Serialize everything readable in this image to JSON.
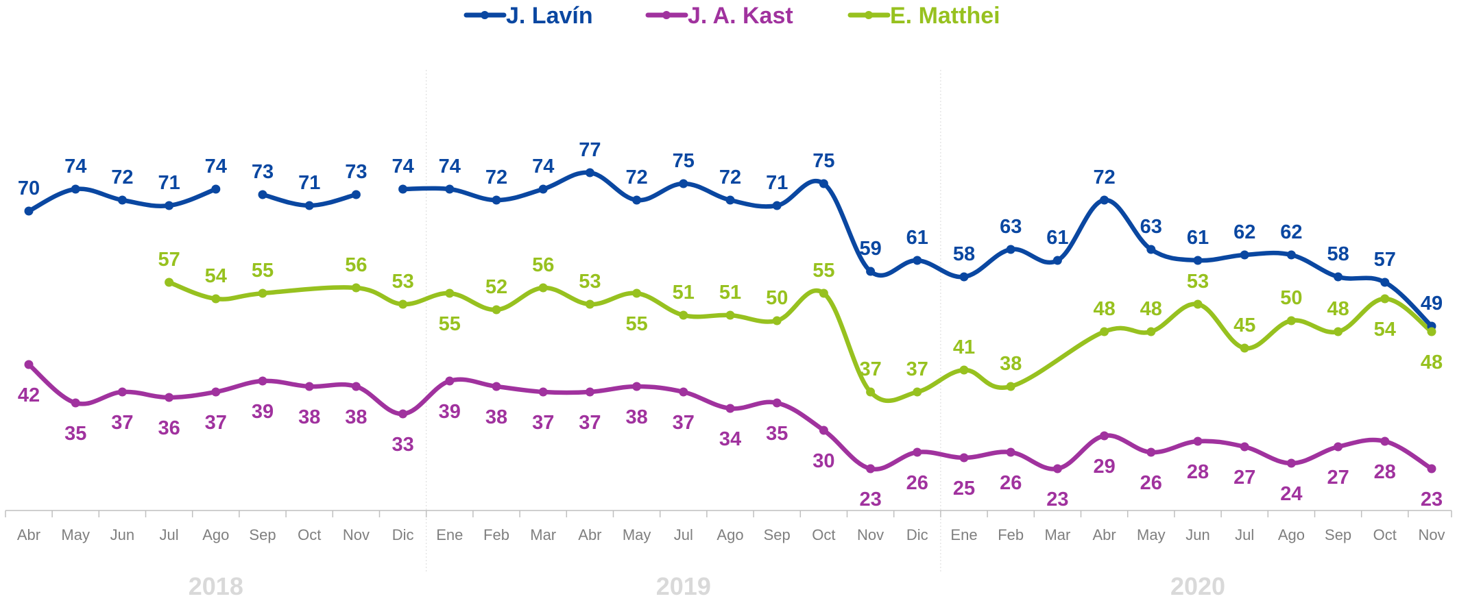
{
  "chart_data": {
    "type": "line",
    "categories": [
      "Abr",
      "May",
      "Jun",
      "Jul",
      "Ago",
      "Sep",
      "Oct",
      "Nov",
      "Dic",
      "Ene",
      "Feb",
      "Mar",
      "Abr",
      "May",
      "Jul",
      "Ago",
      "Sep",
      "Oct",
      "Nov",
      "Dic",
      "Ene",
      "Feb",
      "Mar",
      "Abr",
      "May",
      "Jun",
      "Jul",
      "Ago",
      "Sep",
      "Oct",
      "Nov"
    ],
    "year_groups": [
      {
        "label": "2018",
        "from": 0,
        "to": 8
      },
      {
        "label": "2019",
        "from": 9,
        "to": 19
      },
      {
        "label": "2020",
        "from": 20,
        "to": 30
      }
    ],
    "series": [
      {
        "name": "J. Lavín",
        "color": "#0A47A1",
        "values": [
          70,
          74,
          72,
          71,
          74,
          73,
          71,
          73,
          74,
          74,
          72,
          74,
          77,
          72,
          75,
          72,
          71,
          75,
          59,
          61,
          58,
          63,
          61,
          72,
          63,
          61,
          62,
          62,
          58,
          57,
          49
        ],
        "segments": [
          [
            0,
            4
          ],
          [
            5,
            7
          ],
          [
            8,
            30
          ]
        ],
        "label_pos": [
          "above",
          "above",
          "above",
          "above",
          "above",
          "above",
          "above",
          "above",
          "above",
          "above",
          "above",
          "above",
          "above",
          "above",
          "above",
          "above",
          "above",
          "above",
          "above",
          "above",
          "above",
          "above",
          "above",
          "above",
          "above",
          "above",
          "above",
          "above",
          "above",
          "above",
          "above"
        ]
      },
      {
        "name": "J. A. Kast",
        "color": "#A0329E",
        "values": [
          42,
          35,
          37,
          36,
          37,
          39,
          38,
          38,
          33,
          39,
          38,
          37,
          37,
          38,
          37,
          34,
          35,
          30,
          23,
          26,
          25,
          26,
          23,
          29,
          26,
          28,
          27,
          24,
          27,
          28,
          23
        ],
        "segments": [
          [
            0,
            30
          ]
        ],
        "label_pos": [
          "below",
          "below",
          "below",
          "below",
          "below",
          "below",
          "below",
          "below",
          "below",
          "below",
          "below",
          "below",
          "below",
          "below",
          "below",
          "below",
          "below",
          "below",
          "below",
          "below",
          "below",
          "below",
          "below",
          "below",
          "below",
          "below",
          "below",
          "below",
          "below",
          "below",
          "below"
        ]
      },
      {
        "name": "E. Matthei",
        "color": "#97C11F",
        "values": [
          null,
          null,
          null,
          57,
          54,
          55,
          null,
          56,
          53,
          55,
          52,
          56,
          53,
          55,
          51,
          51,
          50,
          55,
          37,
          37,
          41,
          38,
          null,
          48,
          48,
          53,
          45,
          50,
          48,
          54,
          48
        ],
        "segments": [
          [
            3,
            30
          ]
        ],
        "label_pos": [
          null,
          null,
          null,
          "above",
          "above",
          "above",
          null,
          "above",
          "above",
          "below",
          "above",
          "above",
          "above",
          "below",
          "above",
          "above",
          "above",
          "above",
          "above",
          "above",
          "above",
          "above",
          null,
          "above",
          "above",
          "above",
          "above",
          "above",
          "above",
          "below",
          "below"
        ]
      }
    ],
    "legend_position": "top-center",
    "grid": false
  }
}
